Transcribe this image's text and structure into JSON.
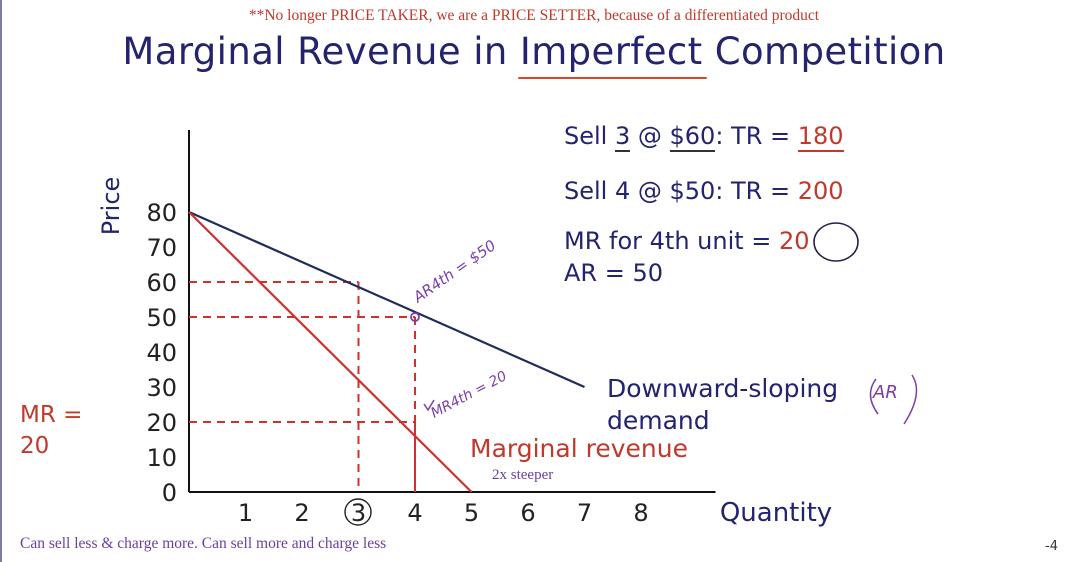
{
  "note_top": "**No longer PRICE TAKER, we are a PRICE SETTER, because of a differentiated product",
  "title": {
    "before": "Marginal Revenue in ",
    "underlined": "Imperfect",
    "after": " Competition"
  },
  "info": {
    "line1": {
      "pre": "Sell ",
      "qty": "3",
      "mid": " @ ",
      "price": "$60",
      "post": ": TR = ",
      "tr": "180"
    },
    "line2": {
      "pre": "Sell 4 @ $50: TR = ",
      "tr": "200"
    },
    "line3": {
      "pre": "MR for 4th unit = ",
      "val": "20"
    },
    "line4": "AR = 50"
  },
  "mr_left": {
    "line1": "MR =",
    "line2": "20"
  },
  "footer": "Can sell less & charge more.  Can sell more and charge less",
  "page_number": "-4",
  "colors": {
    "demand": "#1f2d5c",
    "mr": "#d0312d",
    "purple": "#7b3fa6",
    "text": "#23236e"
  },
  "chart_data": {
    "type": "line",
    "xlabel": "Quantity",
    "ylabel": "Price",
    "x_ticks": [
      "1",
      "2",
      "3",
      "4",
      "5",
      "6",
      "7",
      "8"
    ],
    "y_ticks": [
      "0",
      "10",
      "20",
      "30",
      "40",
      "50",
      "60",
      "70",
      "80"
    ],
    "xlim": [
      0,
      9
    ],
    "ylim": [
      0,
      90
    ],
    "series": [
      {
        "name": "Downward-sloping demand",
        "color": "#1f2d5c",
        "x": [
          0,
          7
        ],
        "y": [
          80,
          30
        ]
      },
      {
        "name": "Marginal revenue",
        "color": "#d0312d",
        "x": [
          0,
          5
        ],
        "y": [
          80,
          0
        ]
      }
    ],
    "guides": [
      {
        "x": 3,
        "y": 60
      },
      {
        "x": 4,
        "y": 50
      },
      {
        "x": 4,
        "y": 20
      }
    ],
    "labels": {
      "demand_line1": "Downward-sloping",
      "demand_line2": "demand",
      "demand_ar": "AR",
      "mr": "Marginal revenue",
      "steeper": "2x steeper",
      "ar_annotation": "AR4th = $50",
      "mr_annotation": "MR4th = 20"
    }
  }
}
